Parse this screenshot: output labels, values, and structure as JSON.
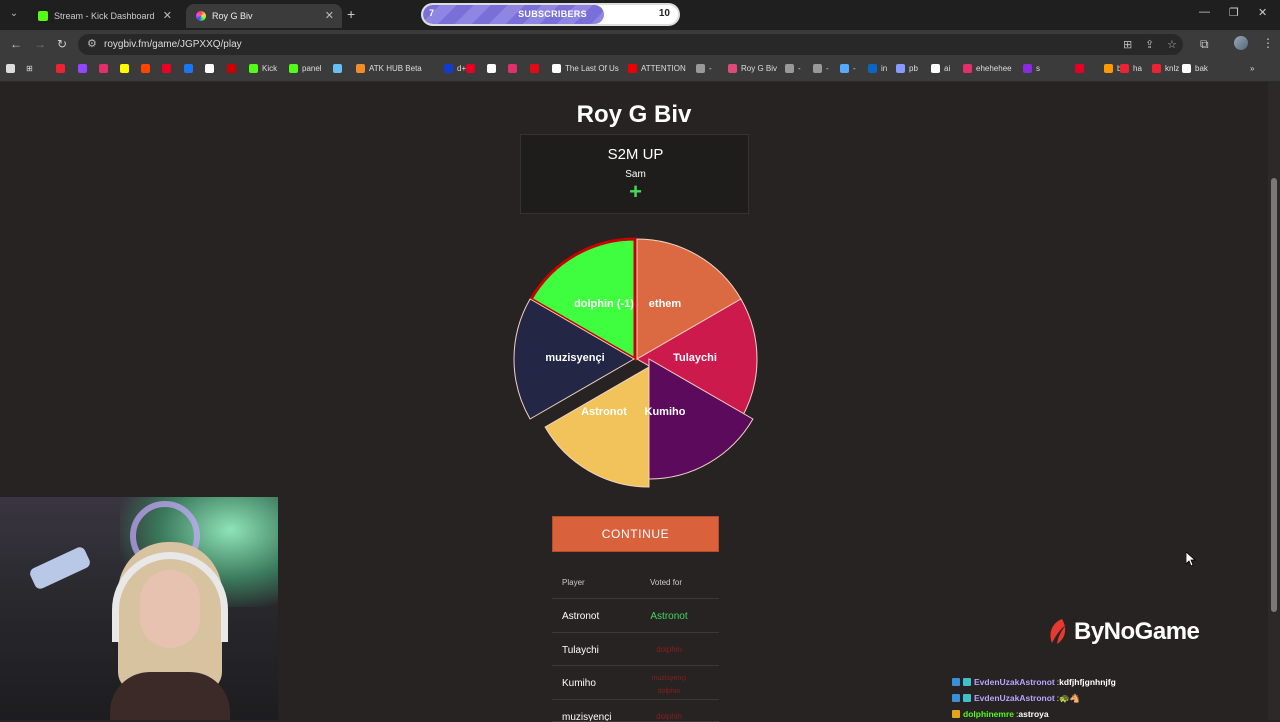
{
  "browser": {
    "tabs": [
      {
        "title": "Stream - Kick Dashboard",
        "color": "#53fc18"
      },
      {
        "title": "Roy G Biv",
        "color": "#e04a7a"
      }
    ],
    "url": "roygbiv.fm/game/JGPXXQ/play",
    "bookmarks": [
      {
        "label": "",
        "color": "#e23"
      },
      {
        "label": "",
        "color": "#9146ff"
      },
      {
        "label": "",
        "color": "#e1306c"
      },
      {
        "label": "",
        "color": "#fffc00"
      },
      {
        "label": "",
        "color": "#ff4500"
      },
      {
        "label": "",
        "color": "#e02"
      },
      {
        "label": "",
        "color": "#1877f2"
      },
      {
        "label": "",
        "color": "#fff"
      },
      {
        "label": "",
        "color": "#c00"
      },
      {
        "label": "Kick",
        "color": "#53fc18"
      },
      {
        "label": "panel",
        "color": "#53fc18"
      },
      {
        "label": "",
        "color": "#66c0f4"
      },
      {
        "label": "ATK HUB Beta",
        "color": "#f28c28"
      },
      {
        "label": "d+",
        "color": "#113ccf"
      },
      {
        "label": "",
        "color": "#e60023"
      },
      {
        "label": "",
        "color": "#fff"
      },
      {
        "label": "",
        "color": "#e1306c"
      },
      {
        "label": "",
        "color": "#e50914"
      },
      {
        "label": "The Last Of Us",
        "color": "#fff"
      },
      {
        "label": "ATTENTION",
        "color": "#e00"
      },
      {
        "label": "-",
        "color": "#999"
      },
      {
        "label": "Roy G Biv",
        "color": "#e04a7a"
      },
      {
        "label": "-",
        "color": "#999"
      },
      {
        "label": "-",
        "color": "#999"
      },
      {
        "label": "-",
        "color": "#5af"
      },
      {
        "label": "in",
        "color": "#0a66c2"
      },
      {
        "label": "pb",
        "color": "#89f"
      },
      {
        "label": "ai",
        "color": "#fff"
      },
      {
        "label": "ehehehee",
        "color": "#e1306c"
      },
      {
        "label": "s",
        "color": "#8a2be2"
      },
      {
        "label": "",
        "color": "#e60023"
      },
      {
        "label": "bt",
        "color": "#f90"
      },
      {
        "label": "ha",
        "color": "#e23"
      },
      {
        "label": "knlz",
        "color": "#e23"
      },
      {
        "label": "bak",
        "color": "#fff"
      }
    ]
  },
  "subs_goal": {
    "current": "7",
    "label": "SUBSCRIBERS",
    "target": "10",
    "progress": 0.71
  },
  "game": {
    "title": "Roy G Biv",
    "prompt": "S2M UP",
    "author": "Sam",
    "plus": "+",
    "continue_label": "CONTINUE"
  },
  "wheel": {
    "slices": [
      {
        "name": "dolphin (-1)",
        "color": "#3ffe3f",
        "highlight": true
      },
      {
        "name": "ethem",
        "color": "#db6a42"
      },
      {
        "name": "Tulaychi",
        "color": "#cd1a4c"
      },
      {
        "name": "Kumiho",
        "color": "#5c0a5c"
      },
      {
        "name": "Astronot",
        "color": "#f1c35a"
      },
      {
        "name": "muzisyençi",
        "color": "#242646"
      }
    ]
  },
  "votes": {
    "headers": {
      "player": "Player",
      "voted_for": "Voted for"
    },
    "rows": [
      {
        "player": "Astronot",
        "vote": "Astronot",
        "correct": true
      },
      {
        "player": "Tulaychi",
        "vote": "dolphin",
        "correct": false
      },
      {
        "player": "Kumiho",
        "vote": "muzisyençi",
        "vote2": "dolphin",
        "correct": false
      },
      {
        "player": "muzisyençi",
        "vote": "dolphin",
        "correct": false
      }
    ]
  },
  "brand": "ByNoGame",
  "chat": [
    {
      "user": "EvdenUzakAstronot",
      "user_color": "#b8a5ff",
      "msg": "kdfjhfjgnhnjfg"
    },
    {
      "user": "EvdenUzakAstronot",
      "user_color": "#b8a5ff",
      "msg": "🐢🐴"
    },
    {
      "user": "dolphinemre",
      "user_color": "#53fc18",
      "msg": "astroya"
    }
  ]
}
